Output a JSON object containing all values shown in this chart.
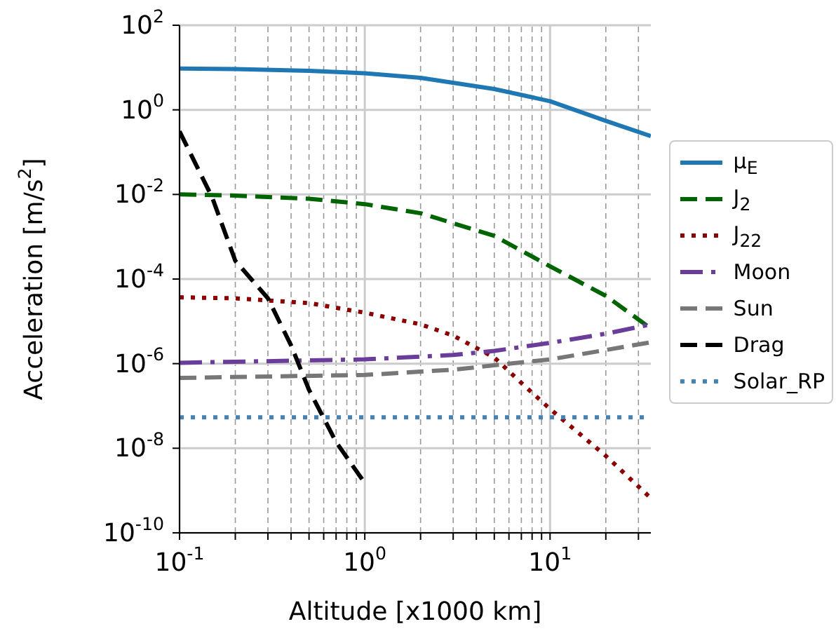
{
  "chart_data": {
    "type": "line",
    "xlabel": "Altitude [x1000 km]",
    "ylabel": "Acceleration [m/s$^{2}$]",
    "log": "xy",
    "grid": true,
    "legend": "right",
    "xlim": [
      0.1,
      35
    ],
    "ylim": [
      1e-10,
      100
    ],
    "xticks": [
      {
        "value": 0.1,
        "label": "10$^{-1}$"
      },
      {
        "value": 0.2,
        "label": null
      },
      {
        "value": 0.3,
        "label": null
      },
      {
        "value": 0.4,
        "label": null
      },
      {
        "value": 0.5,
        "label": null
      },
      {
        "value": 0.6,
        "label": null
      },
      {
        "value": 0.7,
        "label": null
      },
      {
        "value": 0.8,
        "label": null
      },
      {
        "value": 0.9,
        "label": null
      },
      {
        "value": 1,
        "label": "10$^{0}$"
      },
      {
        "value": 2,
        "label": null
      },
      {
        "value": 3,
        "label": null
      },
      {
        "value": 4,
        "label": null
      },
      {
        "value": 5,
        "label": null
      },
      {
        "value": 6,
        "label": null
      },
      {
        "value": 7,
        "label": null
      },
      {
        "value": 8,
        "label": null
      },
      {
        "value": 9,
        "label": null
      },
      {
        "value": 10,
        "label": "10$^{1}$"
      },
      {
        "value": 20,
        "label": null
      },
      {
        "value": 30,
        "label": null
      }
    ],
    "yticks": [
      {
        "value": 1e-10,
        "label": "10$^{-10}$"
      },
      {
        "value": 1e-08,
        "label": "10$^{-8}$"
      },
      {
        "value": 1e-06,
        "label": "10$^{-6}$"
      },
      {
        "value": 0.0001,
        "label": "10$^{-4}$"
      },
      {
        "value": 0.01,
        "label": "10$^{-2}$"
      },
      {
        "value": 1,
        "label": "10$^{0}$"
      },
      {
        "value": 100,
        "label": "10$^{2}$"
      }
    ],
    "series": [
      {
        "name": "μ$_{E}$",
        "color": "#1f77b4",
        "line_style": "solid",
        "x": [
          0.1,
          0.2,
          0.5,
          1,
          2,
          5,
          10,
          20,
          35
        ],
        "values": [
          9.5,
          9.2,
          8.4,
          7.3,
          5.7,
          3.1,
          1.6,
          0.55,
          0.24
        ]
      },
      {
        "name": "J$_{2}$",
        "color": "#006400",
        "line_style": "dashed",
        "x": [
          0.1,
          0.2,
          0.5,
          1,
          2,
          5,
          10,
          20,
          35
        ],
        "values": [
          0.01,
          0.0094,
          0.0079,
          0.0059,
          0.0036,
          0.00105,
          0.0002,
          4e-05,
          6.8e-06
        ]
      },
      {
        "name": "J$_{22}$",
        "color": "#8b0000",
        "line_style": "dotted",
        "x": [
          0.1,
          0.2,
          0.5,
          1,
          2,
          3,
          5,
          7,
          10,
          20,
          35
        ],
        "values": [
          3.7e-05,
          3.5e-05,
          2.7e-05,
          1.6e-05,
          8.5e-06,
          4.6e-06,
          1.4e-06,
          3.5e-07,
          8.5e-08,
          6.6e-09,
          6.6e-10
        ]
      },
      {
        "name": "Moon",
        "color": "#6a3d9a",
        "line_style": "dashdot",
        "x": [
          0.1,
          1,
          3,
          5,
          10,
          20,
          35
        ],
        "values": [
          1.05e-06,
          1.26e-06,
          1.6e-06,
          2e-06,
          3.1e-06,
          5.1e-06,
          8.5e-06
        ]
      },
      {
        "name": "Sun",
        "color": "#777777",
        "line_style": "dashed",
        "x": [
          0.1,
          1,
          3,
          10,
          20,
          35
        ],
        "values": [
          4.6e-07,
          5.4e-07,
          7.2e-07,
          1.26e-06,
          2.1e-06,
          3.2e-06
        ]
      },
      {
        "name": "Drag",
        "color": "#000000",
        "line_style": "dashed",
        "x": [
          0.1,
          0.15,
          0.2,
          0.3,
          0.4,
          0.5,
          0.7,
          1
        ],
        "values": [
          0.31,
          0.0085,
          0.00027,
          3.5e-05,
          2.7e-06,
          2.4e-07,
          1.4e-08,
          1.5e-09
        ]
      },
      {
        "name": "Solar_RP",
        "color": "#4682b4",
        "line_style": "dotted",
        "x": [
          0.1,
          35
        ],
        "values": [
          5.4e-08,
          5.4e-08
        ]
      }
    ]
  }
}
